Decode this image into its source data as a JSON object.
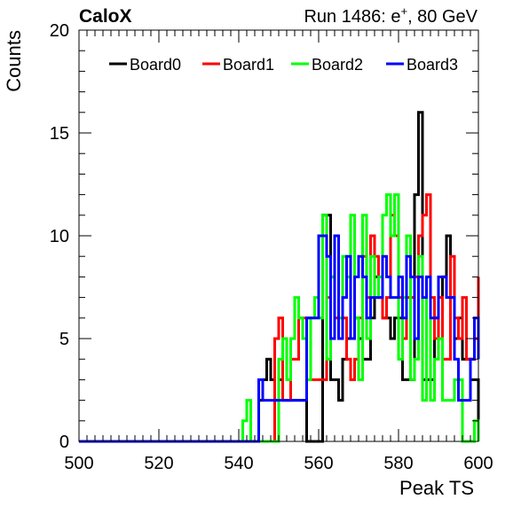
{
  "header": {
    "brand": "CaloX",
    "run_prefix": "Run 1486: e",
    "run_sup": "+",
    "run_suffix": ", 80 GeV"
  },
  "chart_data": {
    "type": "line",
    "style": "step-histogram",
    "title": "",
    "xlabel": "Peak TS",
    "ylabel": "Counts",
    "xlim": [
      500,
      600
    ],
    "ylim": [
      0,
      20
    ],
    "xticks": [
      500,
      520,
      540,
      560,
      580,
      600
    ],
    "yticks": [
      0,
      5,
      10,
      15,
      20
    ],
    "grid": false,
    "legend_position": "top",
    "series": [
      {
        "name": "Board0",
        "color": "#000000",
        "x": [
          540,
          541,
          542,
          543,
          544,
          545,
          546,
          547,
          548,
          549,
          550,
          551,
          552,
          553,
          554,
          555,
          556,
          557,
          558,
          559,
          560,
          561,
          562,
          563,
          564,
          565,
          566,
          567,
          568,
          569,
          570,
          571,
          572,
          573,
          574,
          575,
          576,
          577,
          578,
          579,
          580,
          581,
          582,
          583,
          584,
          585,
          586,
          587,
          588,
          589,
          590,
          591,
          592,
          593,
          594,
          595,
          596,
          597,
          598,
          599,
          600
        ],
        "values": [
          0,
          0,
          0,
          0,
          0,
          2,
          3,
          4,
          3,
          2,
          3,
          2,
          2,
          2,
          2,
          2,
          2,
          0,
          0,
          0,
          0,
          11,
          11,
          3,
          3,
          2,
          4,
          5,
          5,
          6,
          5,
          4,
          4,
          6,
          8,
          7,
          6,
          6,
          5,
          6,
          6,
          3,
          3,
          3,
          12,
          16,
          3,
          3,
          3,
          6,
          5,
          8,
          10,
          7,
          5,
          6,
          4,
          4,
          3,
          3,
          0
        ]
      },
      {
        "name": "Board1",
        "color": "#ff0000",
        "x": [
          540,
          541,
          542,
          543,
          544,
          545,
          546,
          547,
          548,
          549,
          550,
          551,
          552,
          553,
          554,
          555,
          556,
          557,
          558,
          559,
          560,
          561,
          562,
          563,
          564,
          565,
          566,
          567,
          568,
          569,
          570,
          571,
          572,
          573,
          574,
          575,
          576,
          577,
          578,
          579,
          580,
          581,
          582,
          583,
          584,
          585,
          586,
          587,
          588,
          589,
          590,
          591,
          592,
          593,
          594,
          595,
          596,
          597,
          598,
          599,
          600
        ],
        "values": [
          0,
          0,
          0,
          0,
          0,
          0,
          0,
          0,
          0,
          5,
          6,
          2,
          2,
          4,
          4,
          6,
          6,
          6,
          3,
          3,
          3,
          3,
          7,
          8,
          6,
          5,
          6,
          4,
          3,
          4,
          6,
          9,
          7,
          10,
          9,
          7,
          6,
          7,
          11,
          10,
          7,
          5,
          7,
          7,
          8,
          10,
          11,
          12,
          7,
          5,
          7,
          4,
          4,
          9,
          6,
          5,
          7,
          4,
          4,
          5,
          8
        ]
      },
      {
        "name": "Board2",
        "color": "#00ff00",
        "x": [
          540,
          541,
          542,
          543,
          544,
          545,
          546,
          547,
          548,
          549,
          550,
          551,
          552,
          553,
          554,
          555,
          556,
          557,
          558,
          559,
          560,
          561,
          562,
          563,
          564,
          565,
          566,
          567,
          568,
          569,
          570,
          571,
          572,
          573,
          574,
          575,
          576,
          577,
          578,
          579,
          580,
          581,
          582,
          583,
          584,
          585,
          586,
          587,
          588,
          589,
          590,
          591,
          592,
          593,
          594,
          595,
          596,
          597,
          598,
          599,
          600
        ],
        "values": [
          0,
          1,
          2,
          0,
          0,
          0,
          0,
          0,
          0,
          0,
          4,
          5,
          3,
          5,
          7,
          6,
          5,
          3,
          6,
          7,
          6,
          11,
          4,
          8,
          10,
          6,
          9,
          8,
          11,
          6,
          3,
          11,
          5,
          9,
          7,
          8,
          11,
          12,
          10,
          12,
          4,
          7,
          10,
          3,
          4,
          9,
          2,
          8,
          2,
          4,
          5,
          2,
          2,
          2,
          3,
          3,
          0,
          0,
          0,
          1,
          0
        ]
      },
      {
        "name": "Board3",
        "color": "#0000ff",
        "x": [
          540,
          541,
          542,
          543,
          544,
          545,
          546,
          547,
          548,
          549,
          550,
          551,
          552,
          553,
          554,
          555,
          556,
          557,
          558,
          559,
          560,
          561,
          562,
          563,
          564,
          565,
          566,
          567,
          568,
          569,
          570,
          571,
          572,
          573,
          574,
          575,
          576,
          577,
          578,
          579,
          580,
          581,
          582,
          583,
          584,
          585,
          586,
          587,
          588,
          589,
          590,
          591,
          592,
          593,
          594,
          595,
          596,
          597,
          598,
          599,
          600
        ],
        "values": [
          0,
          0,
          0,
          0,
          0,
          3,
          2,
          2,
          2,
          2,
          2,
          2,
          2,
          2,
          2,
          2,
          2,
          6,
          6,
          6,
          10,
          10,
          9,
          5,
          10,
          5,
          7,
          9,
          5,
          8,
          9,
          8,
          6,
          7,
          7,
          7,
          9,
          8,
          7,
          7,
          8,
          6,
          9,
          8,
          5,
          8,
          7,
          8,
          6,
          6,
          8,
          8,
          7,
          7,
          4,
          2,
          2,
          2,
          4,
          6,
          4
        ]
      }
    ]
  }
}
